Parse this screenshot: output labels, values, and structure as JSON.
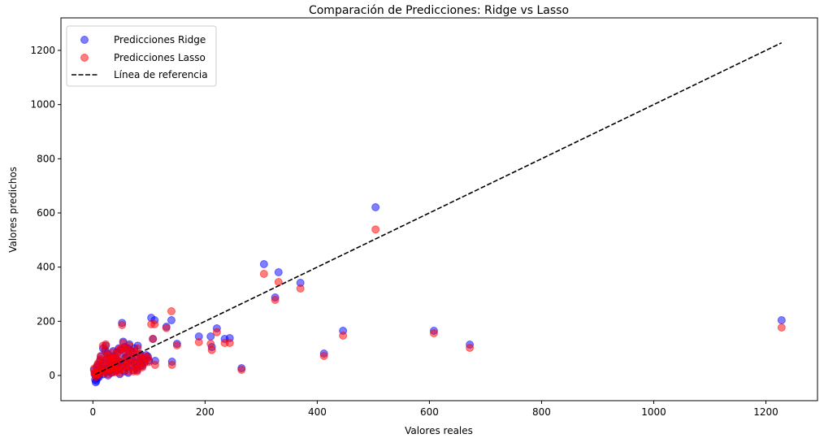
{
  "chart_data": {
    "type": "scatter",
    "title": "Comparación de Predicciones: Ridge vs Lasso",
    "xlabel": "Valores reales",
    "ylabel": "Valores predichos",
    "xlim": [
      -57,
      1292
    ],
    "ylim": [
      -93,
      1320
    ],
    "xticks": [
      0,
      200,
      400,
      600,
      800,
      1000,
      1200
    ],
    "yticks": [
      0,
      200,
      400,
      600,
      800,
      1000,
      1200
    ],
    "grid": false,
    "legend_placement": "top-left",
    "colors": {
      "ridge": "#0000ff",
      "lasso": "#ff0000",
      "reference": "#000000"
    },
    "marker_alpha": 0.5,
    "series": [
      {
        "name": "Predicciones Ridge",
        "color": "#0000ff"
      },
      {
        "name": "Predicciones Lasso",
        "color": "#ff0000"
      }
    ],
    "reference_line": {
      "name": "Línea de referencia",
      "x": [
        4,
        1228
      ],
      "y": [
        4,
        1228
      ],
      "style": "dashed"
    },
    "points_columns": [
      "actual",
      "ridge",
      "lasso"
    ],
    "points": [
      [
        504,
        621,
        539
      ],
      [
        1228,
        204,
        177
      ],
      [
        305,
        411,
        375
      ],
      [
        331,
        381,
        345
      ],
      [
        325,
        288,
        279
      ],
      [
        370,
        342,
        321
      ],
      [
        412,
        81,
        72
      ],
      [
        446,
        165,
        147
      ],
      [
        608,
        165,
        156
      ],
      [
        672,
        114,
        102
      ],
      [
        104,
        213,
        189
      ],
      [
        110,
        204,
        189
      ],
      [
        140,
        204,
        237
      ],
      [
        131,
        180,
        175
      ],
      [
        107,
        135,
        135
      ],
      [
        150,
        117,
        111
      ],
      [
        189,
        144,
        123
      ],
      [
        210,
        144,
        117
      ],
      [
        212,
        105,
        94
      ],
      [
        221,
        174,
        160
      ],
      [
        235,
        135,
        120
      ],
      [
        244,
        138,
        120
      ],
      [
        111,
        54,
        39
      ],
      [
        141,
        51,
        39
      ],
      [
        265,
        27,
        21
      ],
      [
        5,
        -25,
        -5
      ],
      [
        6,
        -20,
        0
      ],
      [
        4,
        -15,
        5
      ],
      [
        8,
        -10,
        8
      ],
      [
        3,
        5,
        10
      ],
      [
        10,
        0,
        12
      ],
      [
        12,
        10,
        15
      ],
      [
        15,
        20,
        22
      ],
      [
        7,
        30,
        35
      ],
      [
        20,
        45,
        50
      ],
      [
        22,
        90,
        95
      ],
      [
        18,
        100,
        110
      ],
      [
        25,
        60,
        58
      ],
      [
        30,
        40,
        45
      ],
      [
        35,
        25,
        30
      ],
      [
        40,
        70,
        65
      ],
      [
        45,
        55,
        60
      ],
      [
        50,
        95,
        100
      ],
      [
        55,
        80,
        90
      ],
      [
        60,
        30,
        35
      ],
      [
        65,
        115,
        110
      ],
      [
        70,
        60,
        55
      ],
      [
        75,
        45,
        40
      ],
      [
        80,
        110,
        100
      ],
      [
        85,
        70,
        65
      ],
      [
        90,
        60,
        58
      ],
      [
        95,
        75,
        70
      ],
      [
        100,
        55,
        50
      ],
      [
        28,
        15,
        20
      ],
      [
        33,
        10,
        12
      ],
      [
        38,
        35,
        30
      ],
      [
        42,
        20,
        18
      ],
      [
        48,
        5,
        10
      ],
      [
        52,
        194,
        186
      ],
      [
        54,
        125,
        120
      ],
      [
        58,
        65,
        62
      ],
      [
        62,
        100,
        95
      ],
      [
        68,
        90,
        85
      ],
      [
        72,
        20,
        15
      ],
      [
        78,
        30,
        25
      ],
      [
        82,
        50,
        45
      ],
      [
        88,
        35,
        30
      ],
      [
        14,
        70,
        72
      ],
      [
        16,
        35,
        40
      ],
      [
        24,
        25,
        30
      ],
      [
        26,
        80,
        75
      ],
      [
        32,
        50,
        55
      ],
      [
        36,
        90,
        85
      ],
      [
        44,
        40,
        35
      ],
      [
        46,
        100,
        95
      ],
      [
        2,
        20,
        25
      ],
      [
        9,
        40,
        45
      ],
      [
        11,
        -5,
        5
      ],
      [
        13,
        55,
        60
      ],
      [
        19,
        5,
        10
      ],
      [
        21,
        15,
        18
      ],
      [
        23,
        110,
        115
      ],
      [
        27,
        0,
        5
      ],
      [
        29,
        65,
        70
      ],
      [
        31,
        30,
        28
      ],
      [
        34,
        70,
        65
      ],
      [
        37,
        45,
        42
      ],
      [
        39,
        15,
        12
      ],
      [
        41,
        60,
        55
      ],
      [
        43,
        85,
        80
      ],
      [
        47,
        25,
        20
      ],
      [
        49,
        50,
        48
      ],
      [
        53,
        35,
        30
      ],
      [
        56,
        15,
        20
      ],
      [
        57,
        105,
        100
      ],
      [
        59,
        45,
        40
      ],
      [
        61,
        70,
        65
      ],
      [
        63,
        10,
        15
      ],
      [
        66,
        55,
        50
      ],
      [
        69,
        35,
        30
      ],
      [
        71,
        85,
        80
      ],
      [
        74,
        100,
        90
      ],
      [
        77,
        65,
        60
      ],
      [
        79,
        20,
        15
      ],
      [
        84,
        80,
        75
      ],
      [
        86,
        40,
        35
      ],
      [
        92,
        50,
        45
      ],
      [
        98,
        70,
        65
      ]
    ]
  }
}
